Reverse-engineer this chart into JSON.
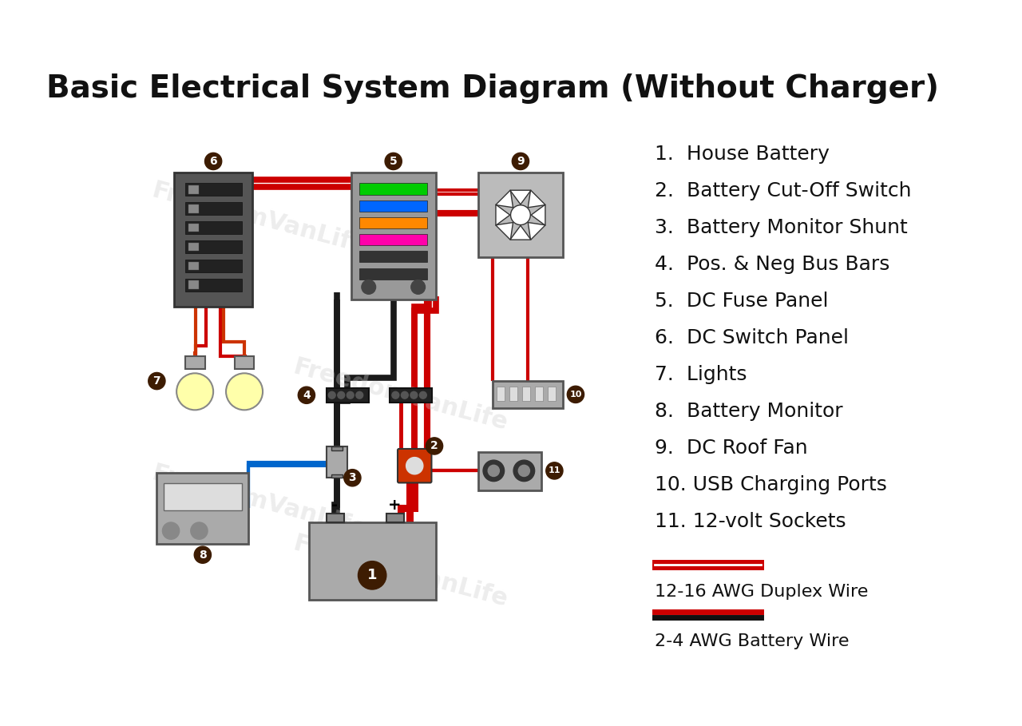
{
  "title": "Basic Electrical System Diagram (Without Charger)",
  "title_fontsize": 28,
  "bg_color": "#ffffff",
  "legend_items": [
    "1.  House Battery",
    "2.  Battery Cut-Off Switch",
    "3.  Battery Monitor Shunt",
    "4.  Pos. & Neg Bus Bars",
    "5.  DC Fuse Panel",
    "6.  DC Switch Panel",
    "7.  Lights",
    "8.  Battery Monitor",
    "9.  DC Roof Fan",
    "10. USB Charging Ports",
    "11. 12-volt Sockets"
  ],
  "wire_legend": [
    [
      "12-16 AWG Duplex Wire",
      [
        "#cc0000",
        "#ffffff",
        "#cc0000"
      ]
    ],
    [
      "2-4 AWG Battery Wire",
      [
        "#cc0000",
        "#000000"
      ]
    ]
  ],
  "brown_color": "#3d1c02",
  "red_color": "#cc0000",
  "black_color": "#1a1a1a",
  "blue_color": "#0066cc",
  "component_gray": "#aaaaaa",
  "dark_gray": "#555555",
  "panel_gray": "#888888",
  "light_yellow": "#ffffaa"
}
